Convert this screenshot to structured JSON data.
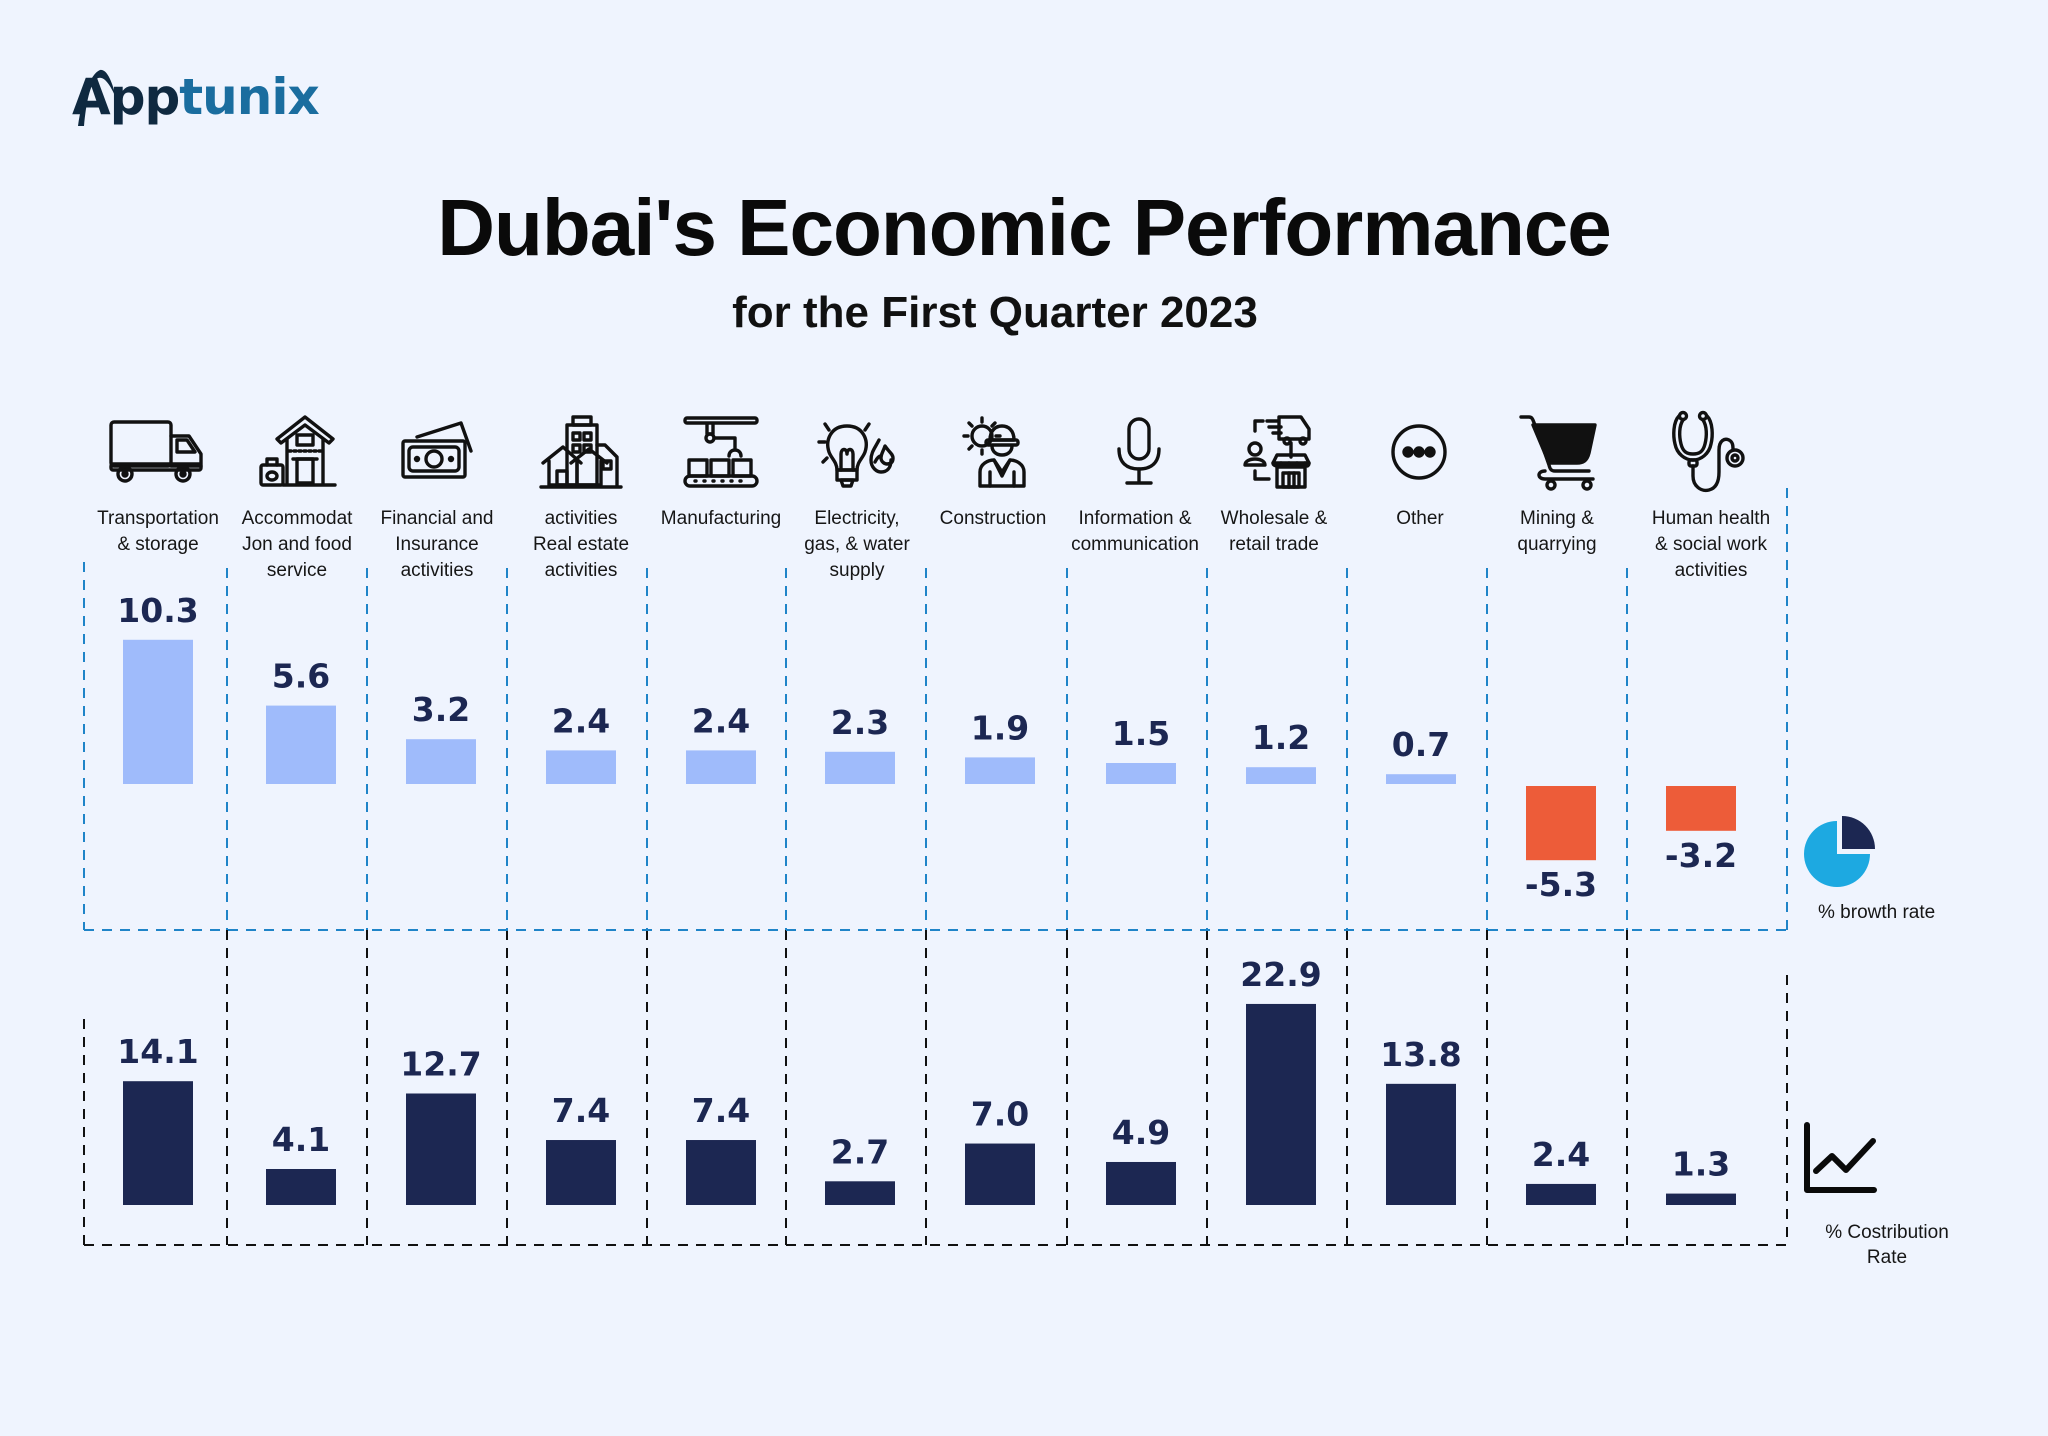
{
  "brand": {
    "logo_text_dark": "App",
    "logo_text_light": "tunix",
    "logo_colors": {
      "dark": "#0f2940",
      "light": "#1a6d9f"
    }
  },
  "header": {
    "title": "Dubai's Economic Performance",
    "subtitle": "for the First Quarter 2023"
  },
  "legend": {
    "growth": {
      "icon": "pie-chart-icon",
      "label": "% browth rate"
    },
    "contribution": {
      "icon": "line-chart-icon",
      "label_lines": [
        "% Costribution",
        "Rate"
      ]
    }
  },
  "colors": {
    "background": "#eff4fe",
    "growth_positive": "#9fbbfb",
    "growth_negative": "#ed5c39",
    "contribution": "#1c2752",
    "value_text": "#1c2752",
    "growth_grid": "#1f84c8",
    "contribution_grid": "#111111",
    "pie_main": "#1da9e1",
    "pie_slice": "#1c2752"
  },
  "chart_data": {
    "type": "bar",
    "title": "Dubai's Economic Performance",
    "subtitle": "for the First Quarter 2023",
    "xlabel": "",
    "ylabel": "",
    "grid": false,
    "legend_position": "right",
    "categories": [
      {
        "icon": "truck-icon",
        "lines": [
          "Transportation",
          "& storage"
        ]
      },
      {
        "icon": "hotel-icon",
        "lines": [
          "Accommodat",
          "Jon and food",
          "service"
        ]
      },
      {
        "icon": "money-icon",
        "lines": [
          "Financial and",
          "Insurance",
          "activities"
        ]
      },
      {
        "icon": "buildings-icon",
        "lines": [
          "activities",
          "Real estate",
          "activities"
        ]
      },
      {
        "icon": "factory-conveyor-icon",
        "lines": [
          "Manufacturing"
        ]
      },
      {
        "icon": "bulb-water-icon",
        "lines": [
          "Electricity,",
          "gas, & water",
          "supply"
        ]
      },
      {
        "icon": "construction-worker-icon",
        "lines": [
          "Construction"
        ]
      },
      {
        "icon": "microphone-icon",
        "lines": [
          "Information &",
          "communication"
        ]
      },
      {
        "icon": "wholesale-retail-icon",
        "lines": [
          "Wholesale &",
          "retail trade"
        ]
      },
      {
        "icon": "more-icon",
        "lines": [
          "Other"
        ]
      },
      {
        "icon": "shopping-cart-icon",
        "lines": [
          "Mining &",
          "quarrying"
        ]
      },
      {
        "icon": "stethoscope-icon",
        "lines": [
          "Human health",
          "& social work",
          "activities"
        ]
      }
    ],
    "series": [
      {
        "name": "% browth rate",
        "labels": [
          "10.3",
          "5.6",
          "3.2",
          "2.4",
          "2.4",
          "2.3",
          "1.9",
          "1.5",
          "1.2",
          "0.7",
          "-5.3",
          "-3.2"
        ],
        "values": [
          10.3,
          5.6,
          3.2,
          2.4,
          2.4,
          2.3,
          1.9,
          1.5,
          1.2,
          0.7,
          -5.3,
          -3.2
        ]
      },
      {
        "name": "% Costribution Rate",
        "labels": [
          "14.1",
          "4.1",
          "12.7",
          "7.4",
          "7.4",
          "2.7",
          "7.0",
          "4.9",
          "22.9",
          "13.8",
          "2.4",
          "1.3"
        ],
        "values": [
          14.1,
          4.1,
          12.7,
          7.4,
          7.4,
          2.7,
          7.0,
          4.9,
          22.9,
          13.8,
          2.4,
          1.3
        ]
      }
    ]
  }
}
